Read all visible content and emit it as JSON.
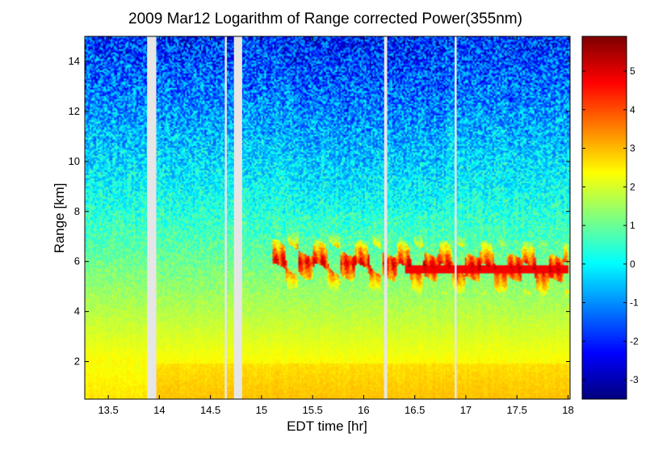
{
  "chart_data": {
    "type": "heatmap",
    "title": "2009 Mar12  Logarithm of Range corrected Power(355nm)",
    "xlabel": "EDT time [hr]",
    "ylabel": "Range [km]",
    "xlim": [
      13.27,
      18.02
    ],
    "ylim": [
      0.5,
      15
    ],
    "x_ticks": [
      13.5,
      14,
      14.5,
      15,
      15.5,
      16,
      16.5,
      17,
      17.5,
      18
    ],
    "x_tick_labels": [
      "13.5",
      "14",
      "14.5",
      "15",
      "15.5",
      "16",
      "16.5",
      "17",
      "17.5",
      "18"
    ],
    "y_ticks": [
      2,
      4,
      6,
      8,
      10,
      12,
      14
    ],
    "y_tick_labels": [
      "2",
      "4",
      "6",
      "8",
      "10",
      "12",
      "14"
    ],
    "colorbar": {
      "colormap": "jet",
      "clim": [
        -3.5,
        5.9
      ],
      "ticks": [
        5,
        4,
        3,
        2,
        1,
        0,
        -1,
        -2,
        -3
      ],
      "tick_labels": [
        "5",
        "4",
        "3",
        "2",
        "1",
        "0",
        "-1",
        "-2",
        "-3"
      ]
    },
    "field": {
      "description_values": "log power vs range: ~3 near ground, ~2 at 3 km, ~0.8 at 8 km, ~-1 above 12 km",
      "surface_layer_top_km": 1.9,
      "cloud_layer": {
        "t_start": 15.1,
        "t_end": 18.0,
        "z_base_km": 5.4,
        "z_top_km": 7.3,
        "peak_value": 5.2
      },
      "data_gaps": [
        {
          "t_start": 13.88,
          "t_end": 13.97
        },
        {
          "t_start": 14.64,
          "t_end": 14.66
        },
        {
          "t_start": 14.73,
          "t_end": 14.81
        },
        {
          "t_start": 16.2,
          "t_end": 16.23
        },
        {
          "t_start": 16.89,
          "t_end": 16.91
        }
      ]
    }
  }
}
